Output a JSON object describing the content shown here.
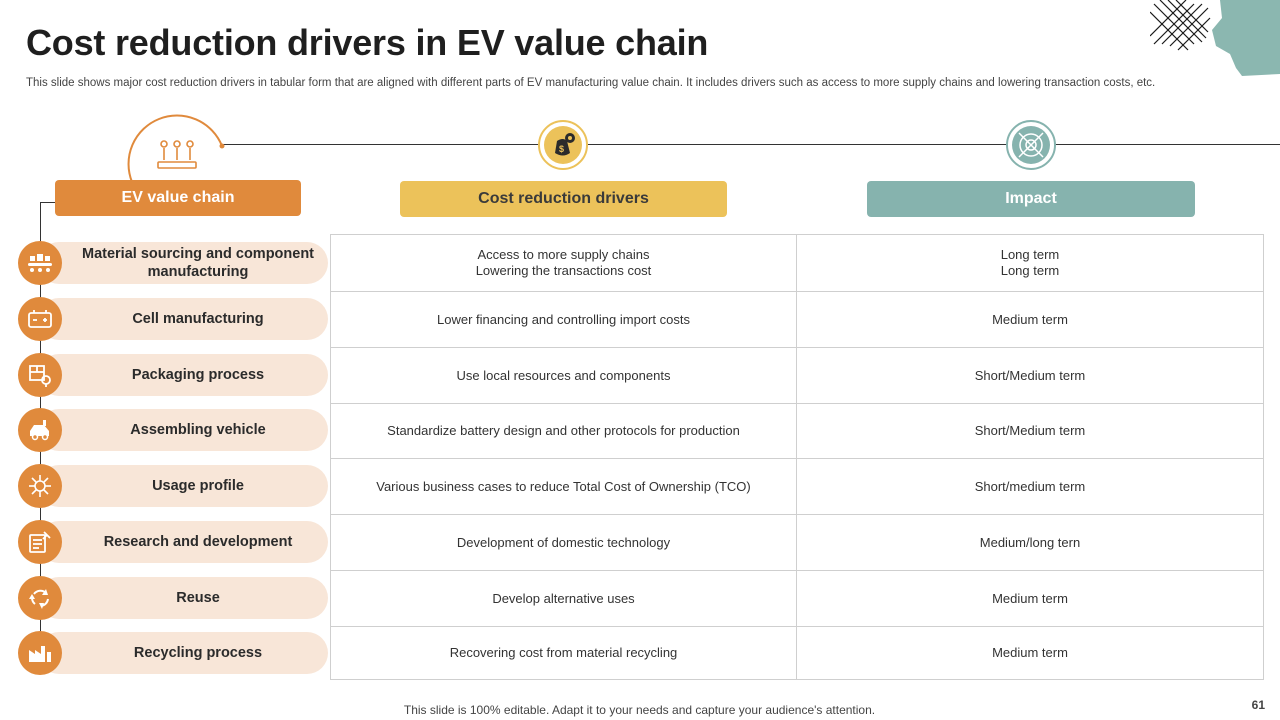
{
  "slide": {
    "title": "Cost reduction drivers in EV value chain",
    "subtitle": "This slide shows major cost reduction drivers in tabular form that are aligned with different parts of EV manufacturing value chain. It includes drivers such as access to more supply chains and lowering transaction costs, etc.",
    "footer": "This slide is 100% editable. Adapt it to your needs and capture your audience's attention.",
    "page_number": "61"
  },
  "colors": {
    "orange": "#e08a3c",
    "yellow": "#ecc25a",
    "teal": "#86b3ae",
    "pill": "#f8e6d8"
  },
  "headers": {
    "ev_value_chain": "EV value chain",
    "cost_reduction_drivers": "Cost reduction drivers",
    "impact": "Impact"
  },
  "header_icons": [
    "value-chain-icon",
    "money-bag-gear-icon",
    "target-impact-icon"
  ],
  "rows": [
    {
      "chain": "Material sourcing and component manufacturing",
      "icon": "factory-conveyor-icon",
      "drivers": [
        "Access to more supply chains",
        "Lowering the transactions cost"
      ],
      "impact": [
        "Long term",
        "Long term"
      ]
    },
    {
      "chain": "Cell manufacturing",
      "icon": "battery-cell-icon",
      "drivers": [
        "Lower financing and controlling import costs"
      ],
      "impact": [
        "Medium term"
      ]
    },
    {
      "chain": "Packaging process",
      "icon": "package-icon",
      "drivers": [
        "Use local resources and components"
      ],
      "impact": [
        "Short/Medium term"
      ]
    },
    {
      "chain": "Assembling vehicle",
      "icon": "car-assembly-icon",
      "drivers": [
        "Standardize battery design and other protocols for production"
      ],
      "impact": [
        "Short/Medium term"
      ]
    },
    {
      "chain": "Usage profile",
      "icon": "network-hub-icon",
      "drivers": [
        "Various business cases to reduce Total Cost of Ownership (TCO)"
      ],
      "impact": [
        "Short/medium term"
      ]
    },
    {
      "chain": "Research and development",
      "icon": "research-document-icon",
      "drivers": [
        "Development of domestic technology"
      ],
      "impact": [
        "Medium/long tern"
      ]
    },
    {
      "chain": "Reuse",
      "icon": "recycle-arrows-icon",
      "drivers": [
        "Develop alternative uses"
      ],
      "impact": [
        "Medium term"
      ]
    },
    {
      "chain": "Recycling process",
      "icon": "recycling-factory-icon",
      "drivers": [
        "Recovering cost from material recycling"
      ],
      "impact": [
        "Medium term"
      ]
    }
  ]
}
